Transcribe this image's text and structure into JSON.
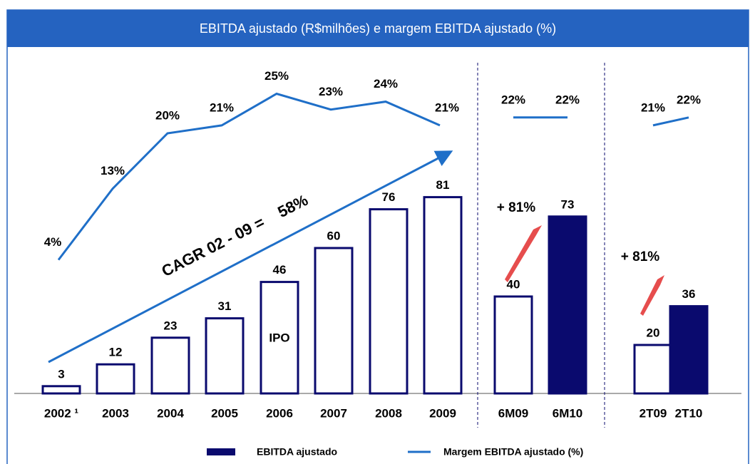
{
  "title": "EBITDA ajustado (R$milhões) e margem EBITDA ajustado (%)",
  "chart_data": [
    {
      "type": "bar_line",
      "categories": [
        "2002 ¹",
        "2003",
        "2004",
        "2005",
        "2006",
        "2007",
        "2008",
        "2009"
      ],
      "series": [
        {
          "name": "EBITDA ajustado",
          "color": "#0a0a6e",
          "fills": [
            "#ffffff",
            "#ffffff",
            "#ffffff",
            "#ffffff",
            "#ffffff",
            "#ffffff",
            "#ffffff",
            "#ffffff"
          ],
          "values": [
            3,
            12,
            23,
            31,
            46,
            60,
            76,
            81
          ]
        },
        {
          "name": "Margem EBITDA ajustado (%)",
          "color": "#1f6fc8",
          "values": [
            4,
            13,
            20,
            21,
            25,
            23,
            24,
            21
          ],
          "value_labels": [
            "4%",
            "13%",
            "20%",
            "21%",
            "25%",
            "23%",
            "24%",
            "21%"
          ]
        }
      ],
      "annotations": [
        "CAGR 02 - 09 =    58%",
        "IPO"
      ]
    },
    {
      "type": "bar_line",
      "categories": [
        "6M09",
        "6M10"
      ],
      "series": [
        {
          "name": "EBITDA ajustado",
          "color": "#0a0a6e",
          "fills": [
            "#ffffff",
            "#0a0a6e"
          ],
          "values": [
            40,
            73
          ]
        },
        {
          "name": "Margem EBITDA ajustado (%)",
          "color": "#1f6fc8",
          "values": [
            22,
            22
          ],
          "value_labels": [
            "22%",
            "22%"
          ]
        }
      ],
      "annotations": [
        "+ 81%"
      ]
    },
    {
      "type": "bar_line",
      "categories": [
        "2T09",
        "2T10"
      ],
      "series": [
        {
          "name": "EBITDA ajustado",
          "color": "#0a0a6e",
          "fills": [
            "#ffffff",
            "#0a0a6e"
          ],
          "values": [
            20,
            36
          ]
        },
        {
          "name": "Margem EBITDA ajustado (%)",
          "color": "#1f6fc8",
          "values": [
            21,
            22
          ],
          "value_labels": [
            "21%",
            "22%"
          ]
        }
      ],
      "annotations": [
        "+ 81%"
      ]
    }
  ]
}
